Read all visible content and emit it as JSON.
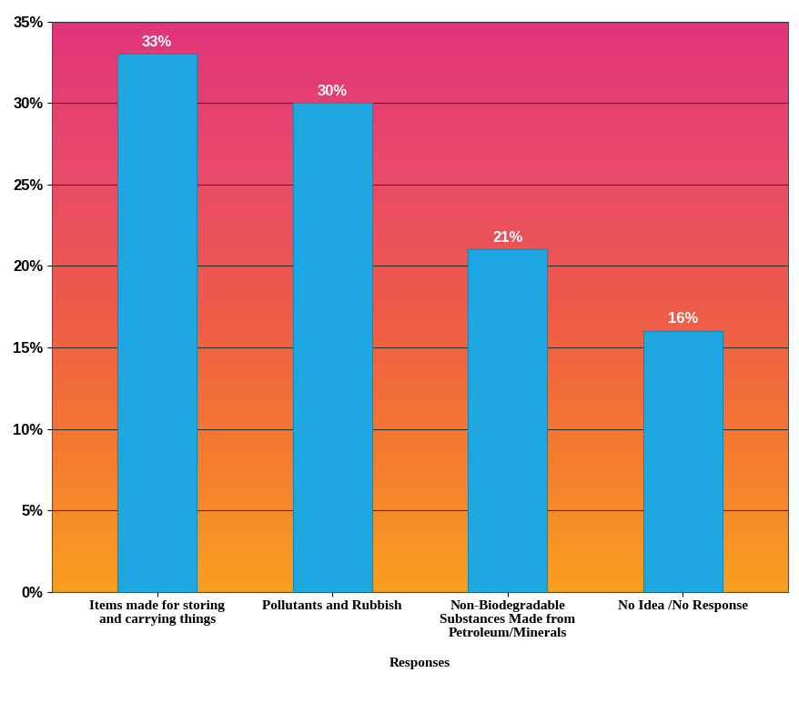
{
  "chart_data": {
    "type": "bar",
    "x_label": "Responses",
    "categories": [
      "Items made for storing and carrying things",
      "Pollutants and Rubbish",
      "Non-Biodegradable Substances Made from Petroleum/Minerals",
      "No Idea /No Response"
    ],
    "values": [
      33,
      30,
      21,
      16
    ],
    "value_labels": [
      "33%",
      "30%",
      "21%",
      "16%"
    ],
    "data_labels": true,
    "color": "#1ea7e1",
    "ylim": [
      0,
      35
    ],
    "yticks": [
      {
        "value": 0,
        "label": "0%"
      },
      {
        "value": 5,
        "label": "5%"
      },
      {
        "value": 10,
        "label": "10%"
      },
      {
        "value": 15,
        "label": "15%"
      },
      {
        "value": 20,
        "label": "20%"
      },
      {
        "value": 25,
        "label": "25%"
      },
      {
        "value": 30,
        "label": "30%"
      },
      {
        "value": 35,
        "label": "35%"
      }
    ],
    "grid": true
  }
}
